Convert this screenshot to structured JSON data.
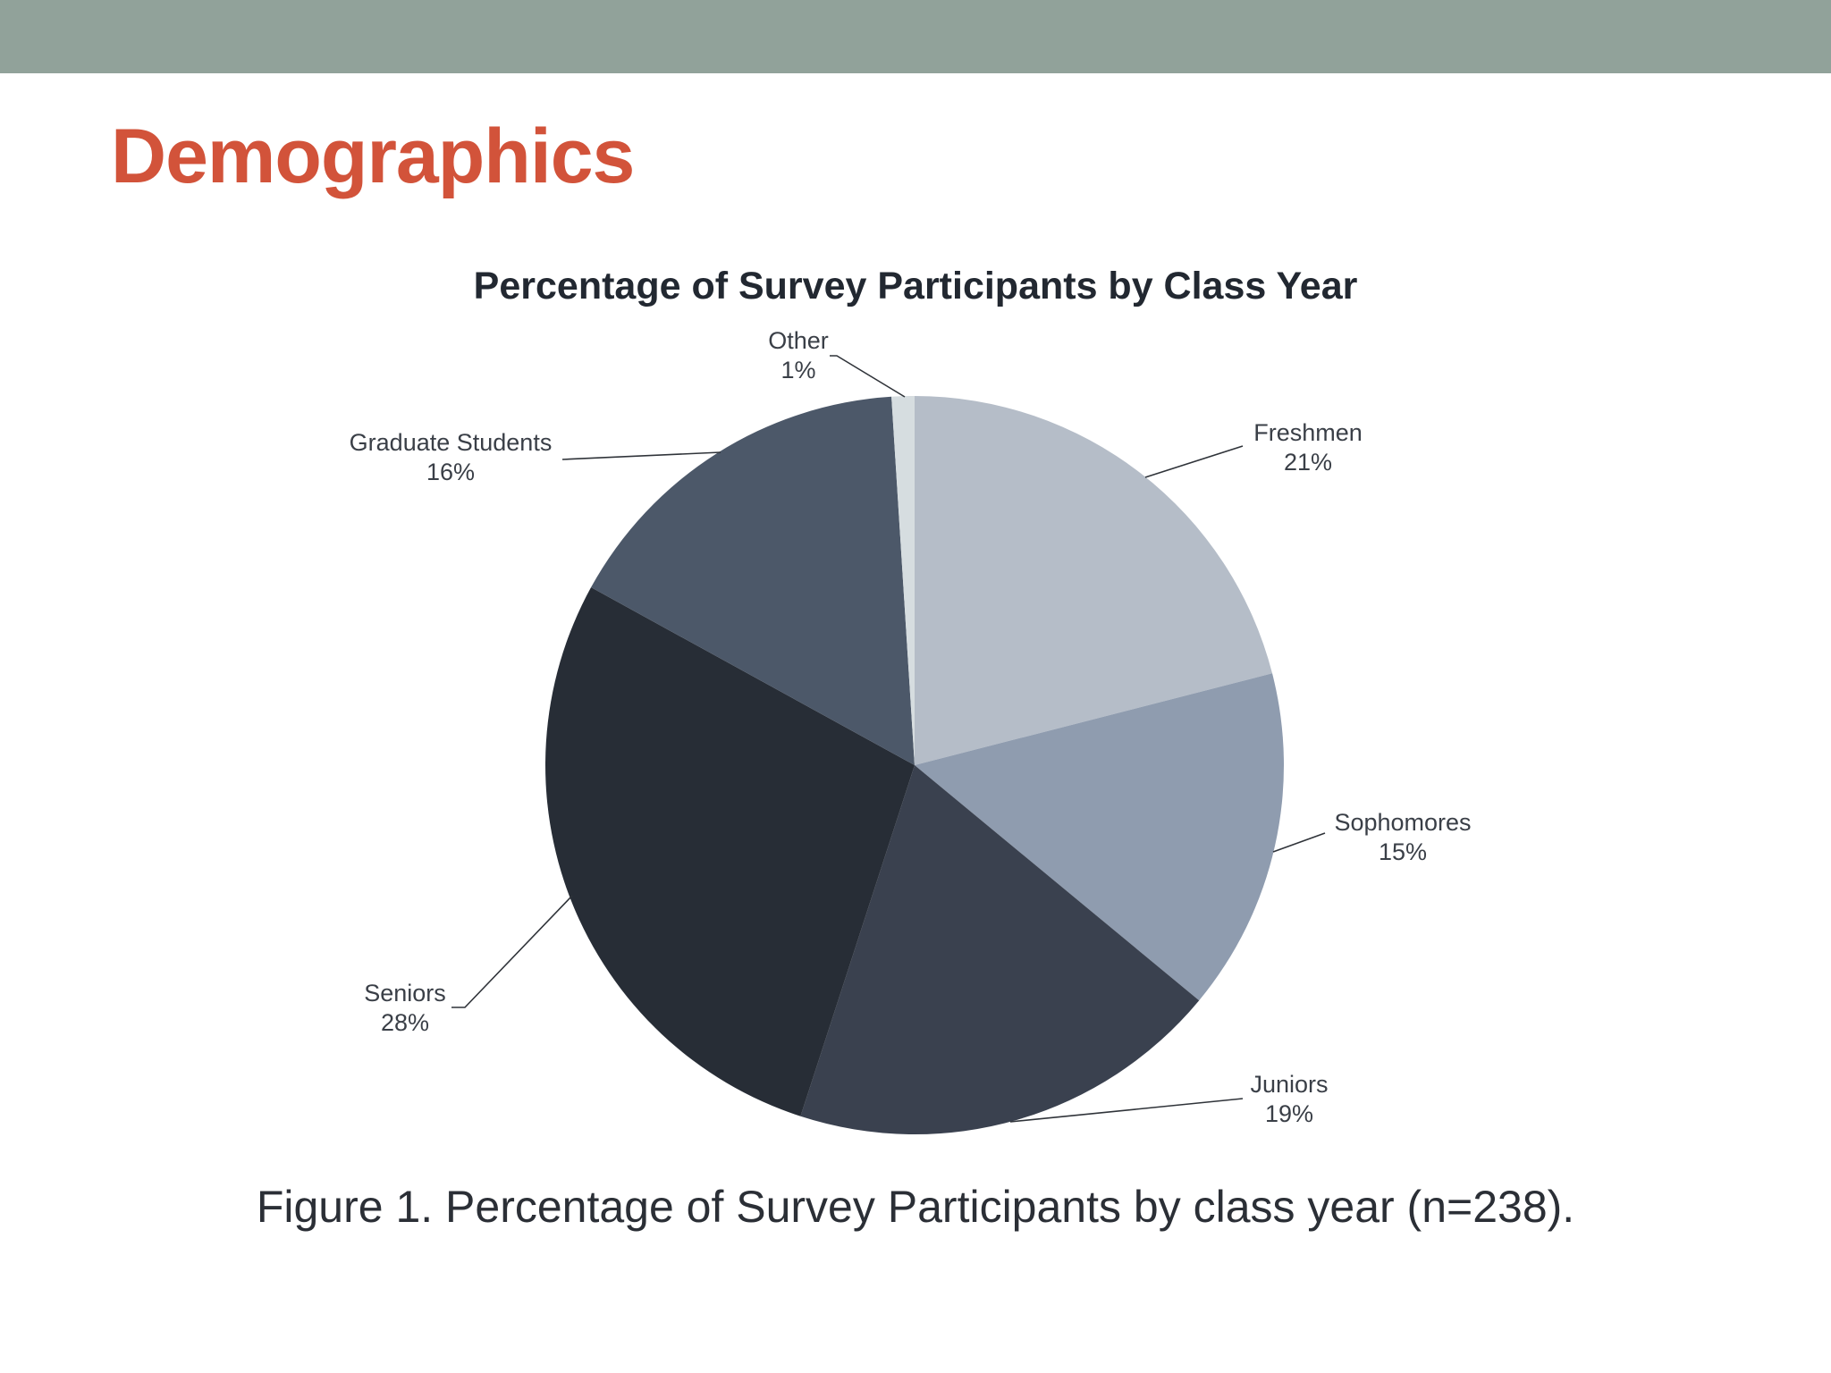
{
  "slide": {
    "title": "Demographics",
    "caption": "Figure 1. Percentage of Survey Participants by class year (n=238).",
    "header_bar_color": "#91a29a",
    "title_color": "#d2533a"
  },
  "chart_data": {
    "type": "pie",
    "title": "Percentage of Survey Participants by Class Year",
    "unit": "%",
    "slices": [
      {
        "label": "Freshmen",
        "value": 21,
        "display": "21%",
        "color": "#b5bdc8"
      },
      {
        "label": "Sophomores",
        "value": 15,
        "display": "15%",
        "color": "#8f9caf"
      },
      {
        "label": "Juniors",
        "value": 19,
        "display": "19%",
        "color": "#3a414f"
      },
      {
        "label": "Seniors",
        "value": 28,
        "display": "28%",
        "color": "#272d36"
      },
      {
        "label": "Graduate Students",
        "value": 16,
        "display": "16%",
        "color": "#4c5869"
      },
      {
        "label": "Other",
        "value": 1,
        "display": "1%",
        "color": "#d6dde0"
      }
    ],
    "start": "12 o'clock, clockwise",
    "labels": "outside with leader lines",
    "legend": "none"
  }
}
